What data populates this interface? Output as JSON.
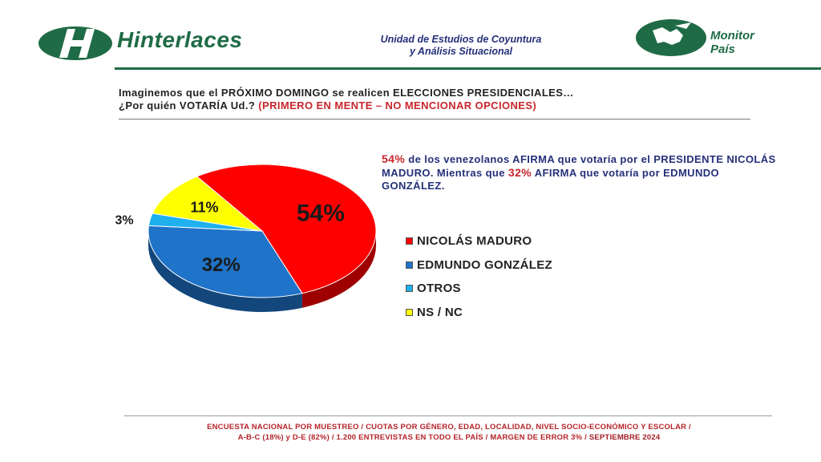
{
  "header": {
    "brand": "Hinterlaces",
    "unit_line1": "Unidad de Estudios de Coyuntura",
    "unit_line2": "y Análisis Situacional",
    "monitor_line1": "Monitor",
    "monitor_line2": "País",
    "icons": [
      "hinterlaces-h-logo-icon",
      "monitor-pais-map-logo-icon"
    ]
  },
  "question": {
    "line1": "Imaginemos que el PRÓXIMO DOMINGO se realicen ELECCIONES PRESIDENCIALES…",
    "line2_main": "¿Por quién VOTARÍA Ud.?",
    "line2_red": "(PRIMERO EN MENTE – NO MENCIONAR OPCIONES)"
  },
  "note": {
    "pct1": "54%",
    "text1": "de los venezolanos AFIRMA que votaría por el PRESIDENTE NICOLÁS MADURO. Mientras que",
    "pct2": "32%",
    "text2": "AFIRMA que votaría por EDMUNDO GONZÁLEZ."
  },
  "chart_data": {
    "type": "pie",
    "categories": [
      "NICOLÁS MADURO",
      "EDMUNDO GONZÁLEZ",
      "OTROS",
      "NS / NC"
    ],
    "values": [
      54,
      32,
      3,
      11
    ],
    "data_labels": [
      "54%",
      "32%",
      "3%",
      "11%"
    ],
    "colors": [
      "#ff0000",
      "#1f73c8",
      "#1fb0ee",
      "#ffff00"
    ],
    "title": "",
    "legend_position": "right"
  },
  "footer": {
    "line1": "ENCUESTA NACIONAL POR MUESTREO / CUOTAS POR GÉNERO, EDAD, LOCALIDAD, NIVEL SOCIO-ECONÓMICO Y ESCOLAR /",
    "line2_main": "A-B-C (18%) y D-E (82%) / 1.200 ENTREVISTAS EN TODO EL PAÍS / MARGEN DE ERROR 3% /",
    "line2_strong": "SEPTIEMBRE 2024"
  }
}
